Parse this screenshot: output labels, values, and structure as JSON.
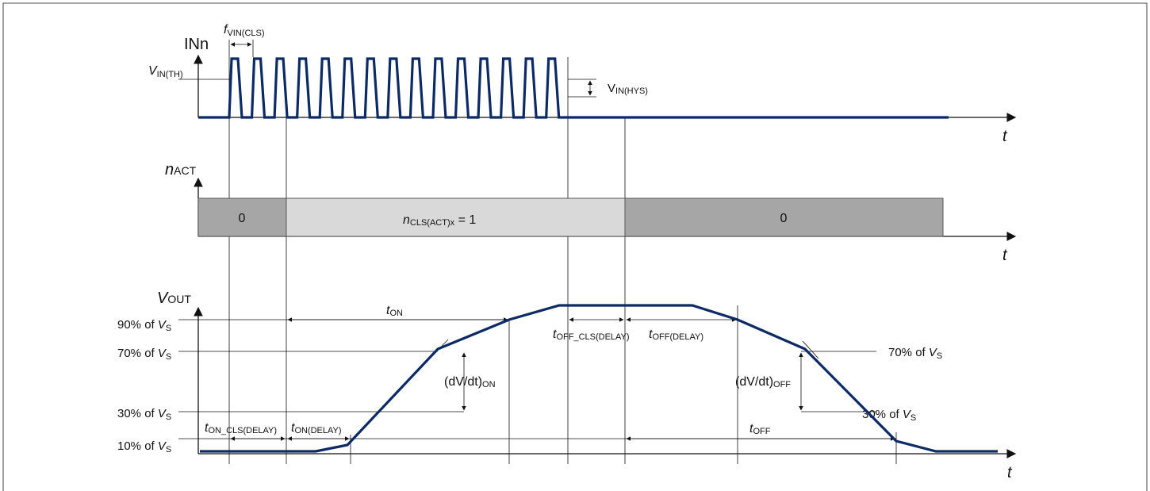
{
  "inn": {
    "label": "INn",
    "freq_main": "f",
    "freq_sub": "VIN(CLS)",
    "vth_main": "V",
    "vth_sub": "IN(TH)",
    "vhys_main": "V",
    "vhys_sub": "IN(HYS)",
    "t": "t"
  },
  "nact": {
    "label_main": "n",
    "label_sub": "ACT",
    "seg_left": "0",
    "seg_mid_main": "n",
    "seg_mid_sub": "CLS(ACT)x",
    "seg_mid_tail": " = 1",
    "seg_right": "0",
    "t": "t"
  },
  "vout": {
    "label_main": "V",
    "label_sub": "OUT",
    "t": "t",
    "levels": {
      "p90": "90% of ",
      "p70": "70% of ",
      "p30": "30% of ",
      "p10": "10% of ",
      "vs_main": "V",
      "vs_sub": "S"
    },
    "t_on_main": "t",
    "t_on_sub": "ON",
    "t_on_cls_delay_main": "t",
    "t_on_cls_delay_sub": "ON_CLS(DELAY)",
    "t_on_delay_main": "t",
    "t_on_delay_sub": "ON(DELAY)",
    "t_off_cls_delay_main": "t",
    "t_off_cls_delay_sub": "OFF_CLS(DELAY)",
    "t_off_delay_main": "t",
    "t_off_delay_sub": "OFF(DELAY)",
    "t_off_main": "t",
    "t_off_sub": "OFF",
    "slew_on_main": "(dV/dt)",
    "slew_on_sub": "ON",
    "slew_off_main": "(dV/dt)",
    "slew_off_sub": "OFF"
  },
  "colors": {
    "signal": "#0b2a66",
    "seg_dark": "#a6a6a6",
    "seg_light": "#d9d9d9"
  }
}
